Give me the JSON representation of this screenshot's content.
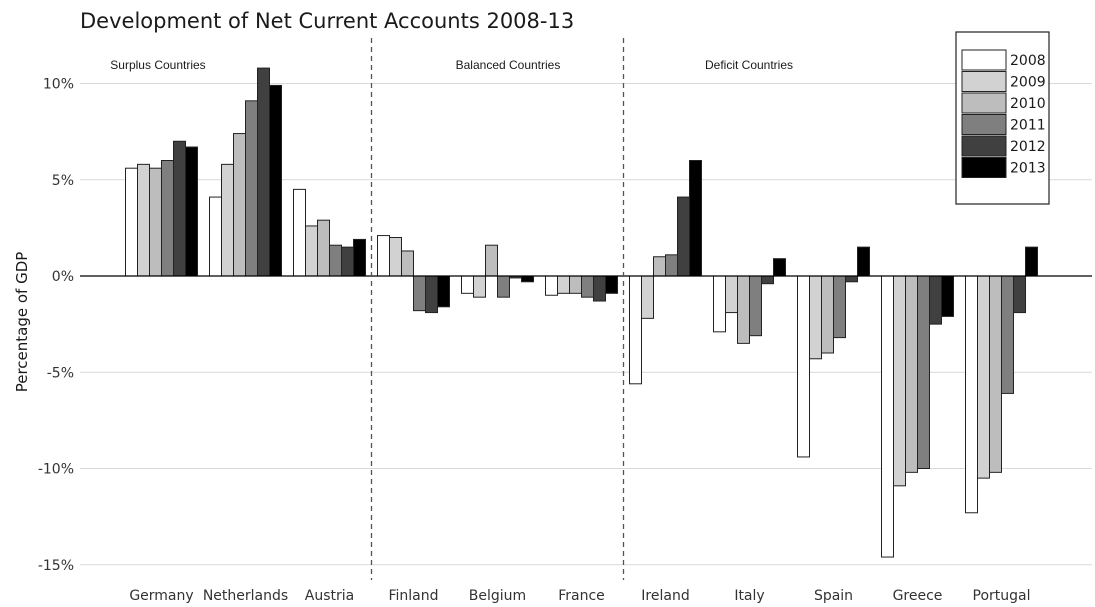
{
  "chart_data": {
    "type": "bar",
    "title": "Development of Net Current Accounts 2008-13",
    "ylabel": "Percentage of GDP",
    "xlabel": "",
    "ylim": [
      -15.5,
      12
    ],
    "yticks": [
      10,
      5,
      0,
      -5,
      -10,
      -15
    ],
    "ytick_labels": [
      "10%",
      "5%",
      "0%",
      "-5%",
      "-10%",
      "-15%"
    ],
    "grid": true,
    "legend_position": "top-right",
    "categories": [
      "Germany",
      "Netherlands",
      "Austria",
      "Finland",
      "Belgium",
      "France",
      "Ireland",
      "Italy",
      "Spain",
      "Greece",
      "Portugal"
    ],
    "groups": [
      {
        "label": "Surplus Countries",
        "start": 0,
        "end": 2
      },
      {
        "label": "Balanced Countries",
        "start": 3,
        "end": 5
      },
      {
        "label": "Deficit Countries",
        "start": 6,
        "end": 10
      }
    ],
    "series": [
      {
        "name": "2008",
        "color": "#ffffff",
        "values": [
          5.6,
          4.1,
          4.5,
          2.1,
          -0.9,
          -1.0,
          -5.6,
          -2.9,
          -9.4,
          -14.6,
          -12.3
        ]
      },
      {
        "name": "2009",
        "color": "#d2d2d2",
        "values": [
          5.8,
          5.8,
          2.6,
          2.0,
          -1.1,
          -0.9,
          -2.2,
          -1.9,
          -4.3,
          -10.9,
          -10.5
        ]
      },
      {
        "name": "2010",
        "color": "#bdbdbd",
        "values": [
          5.6,
          7.4,
          2.9,
          1.3,
          1.6,
          -0.9,
          1.0,
          -3.5,
          -4.0,
          -10.2,
          -10.2
        ]
      },
      {
        "name": "2011",
        "color": "#7f7f7f",
        "values": [
          6.0,
          9.1,
          1.6,
          -1.8,
          -1.1,
          -1.1,
          1.1,
          -3.1,
          -3.2,
          -10.0,
          -6.1
        ]
      },
      {
        "name": "2012",
        "color": "#404040",
        "values": [
          7.0,
          10.8,
          1.5,
          -1.9,
          -0.1,
          -1.3,
          4.1,
          -0.4,
          -0.3,
          -2.5,
          -1.9
        ]
      },
      {
        "name": "2013",
        "color": "#000000",
        "values": [
          6.7,
          9.9,
          1.9,
          -1.6,
          -0.3,
          -0.9,
          6.0,
          0.9,
          1.5,
          -2.1,
          1.5
        ]
      }
    ]
  }
}
